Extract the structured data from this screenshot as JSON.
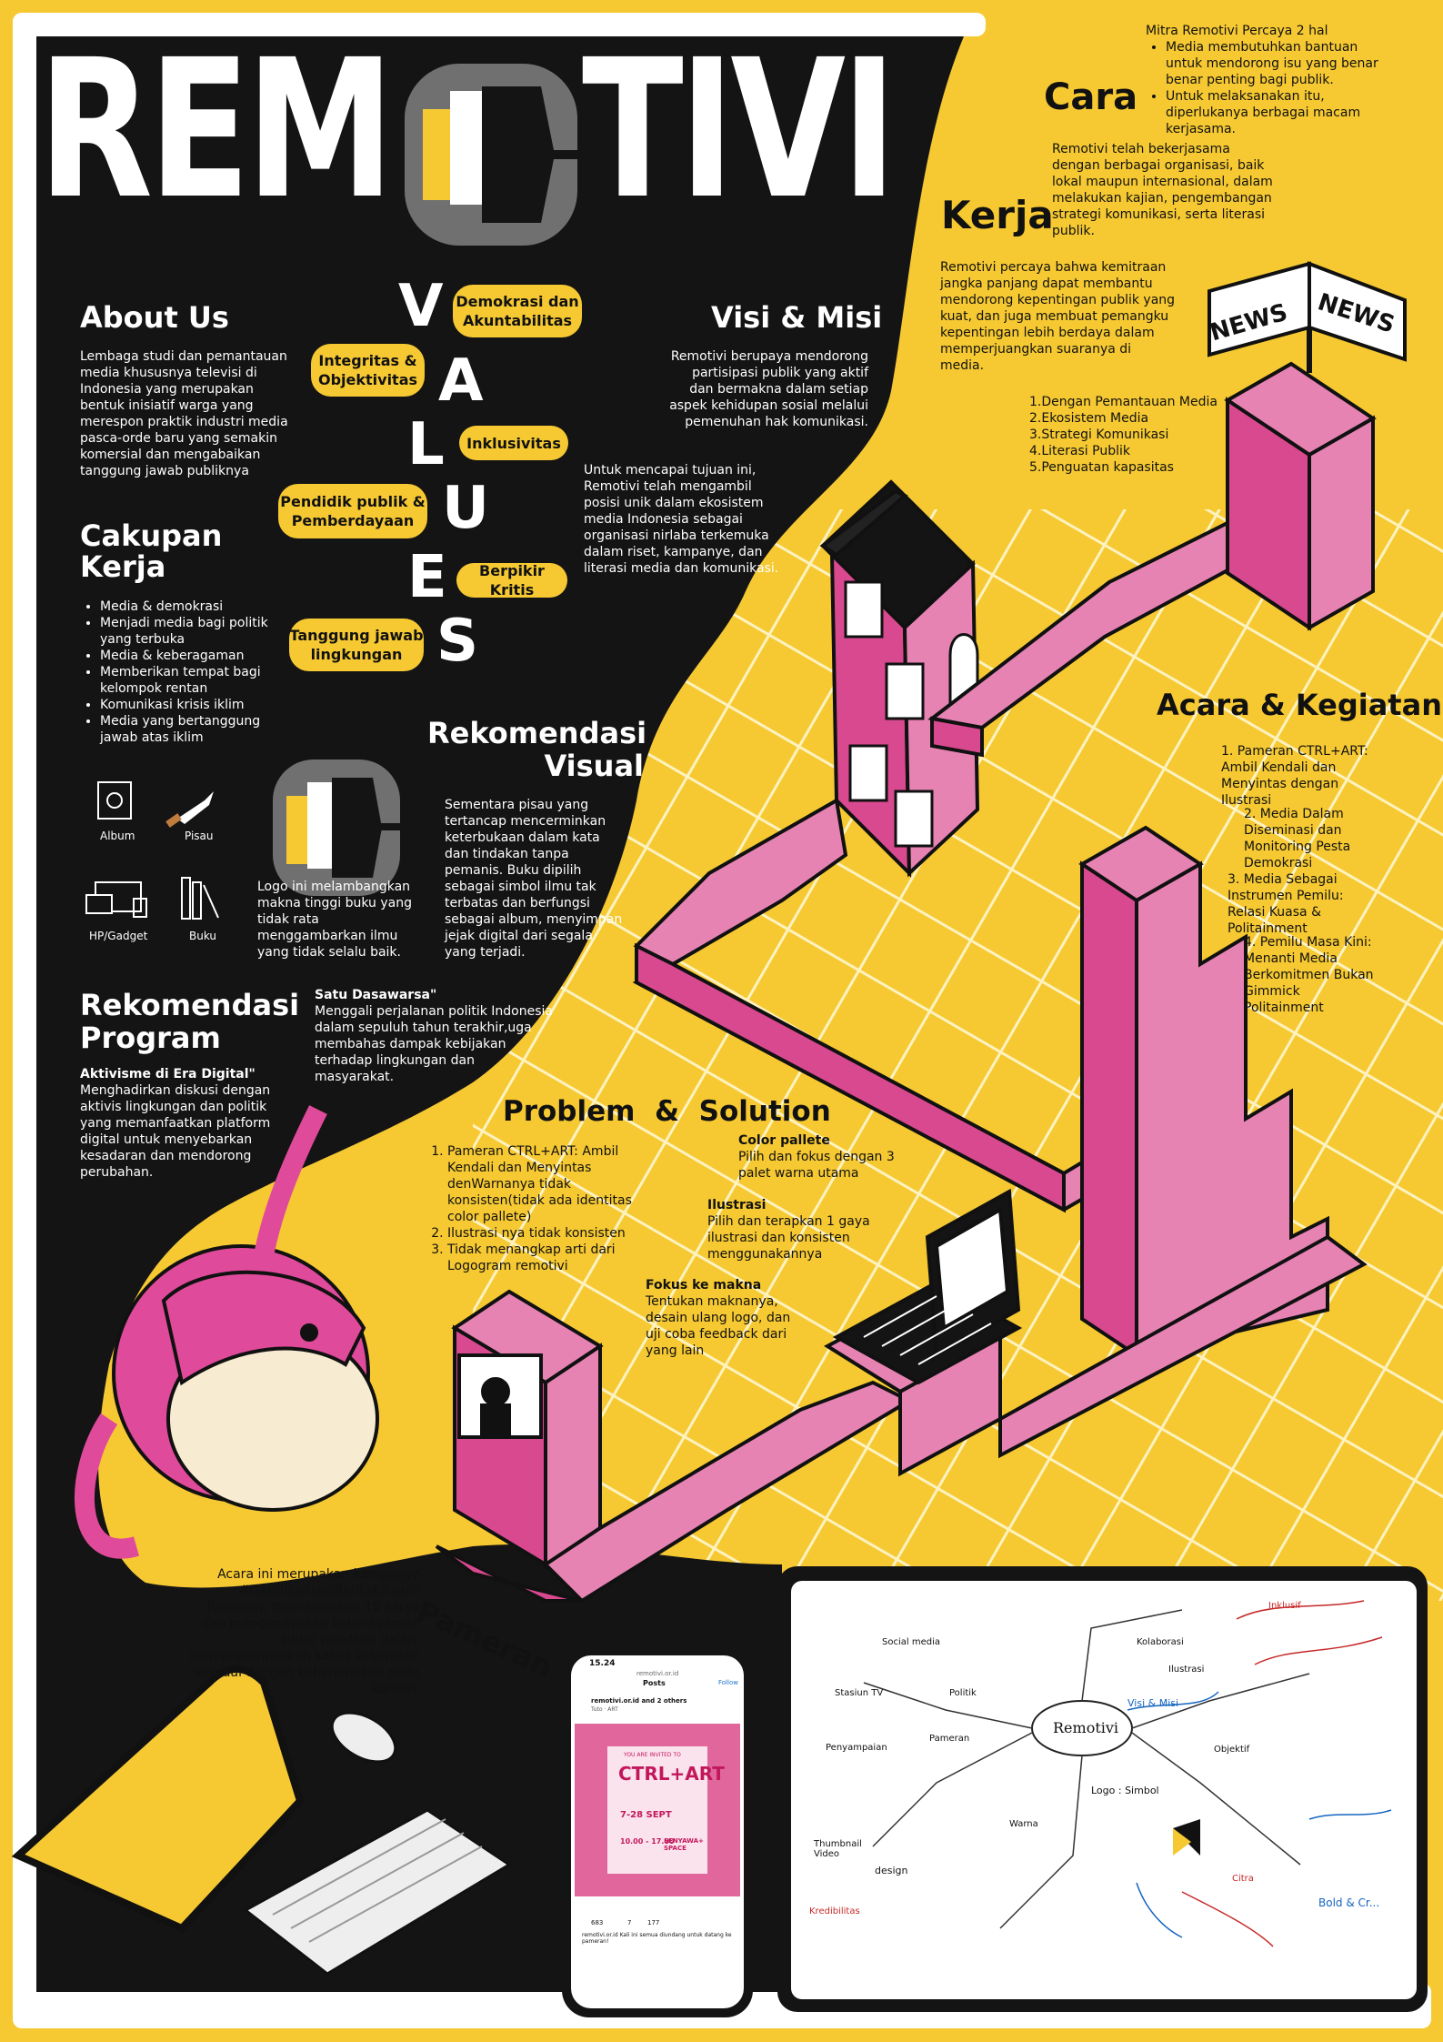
{
  "title": {
    "left": "REM",
    "right": "TIVI"
  },
  "cara_kerja": {
    "word1": "Cara",
    "word2": "Kerja",
    "mitra_title": "Mitra Remotivi Percaya 2 hal",
    "mitra_points": [
      "Media membutuhkan bantuan untuk mendorong isu yang benar benar penting bagi publik.",
      "Untuk melaksanakan itu, diperlukanya berbagai macam kerjasama."
    ],
    "para1": "Remotivi telah bekerjasama dengan berbagai organisasi, baik lokal maupun internasional, dalam melakukan kajian, pengembangan strategi komunikasi, serta literasi publik.",
    "para2": "Remotivi percaya bahwa kemitraan jangka panjang dapat membantu mendorong kepentingan publik yang kuat, dan juga membuat pemangku kepentingan lebih berdaya dalam memperjuangkan suaranya di media.",
    "list": [
      "1.Dengan Pemantauan Media",
      "2.Ekosistem Media",
      "3.Strategi Komunikasi",
      "4.Literasi Publik",
      "5.Penguatan kapasitas"
    ]
  },
  "news_sign": {
    "left": "NEWS",
    "right": "NEWS"
  },
  "about": {
    "heading": "About Us",
    "text": "Lembaga studi dan pemantauan media khususnya televisi di Indonesia yang merupakan bentuk inisiatif warga yang merespon praktik industri media pasca-orde baru yang semakin komersial dan mengabaikan tanggung jawab publiknya"
  },
  "values": {
    "letters": [
      "V",
      "A",
      "L",
      "U",
      "E",
      "S"
    ],
    "items": [
      "Demokrasi dan Akuntabilitas",
      "Integritas & Objektivitas",
      "Inklusivitas",
      "Pendidik publik & Pemberdayaan",
      "Berpikir Kritis",
      "Tanggung jawab lingkungan"
    ]
  },
  "visi_misi": {
    "heading": "Visi & Misi",
    "visi": "Remotivi berupaya mendorong partisipasi publik yang aktif dan bermakna dalam setiap aspek kehidupan sosial melalui pemenuhan hak komunikasi.",
    "misi": "Untuk mencapai tujuan ini, Remotivi telah mengambil posisi unik dalam ekosistem media Indonesia sebagai organisasi nirlaba terkemuka dalam riset, kampanye, dan literasi media dan komunikasi."
  },
  "cakupan": {
    "heading_line1": "Cakupan",
    "heading_line2": "Kerja",
    "items": [
      "Media & demokrasi",
      "Menjadi media bagi politik yang terbuka",
      "Media & keberagaman",
      "Memberikan tempat bagi kelompok rentan",
      "Komunikasi krisis iklim",
      "Media yang bertanggung jawab atas iklim"
    ]
  },
  "rekomendasi_visual": {
    "heading_line1": "Rekomendasi",
    "heading_line2": "Visual",
    "icons": [
      "Album",
      "Pisau",
      "HP/Gadget",
      "Buku"
    ],
    "logo_text": "Logo ini melambangkan makna tinggi buku yang tidak rata menggambarkan ilmu yang tidak selalu baik.",
    "text": "Sementara pisau yang tertancap mencerminkan keterbukaan dalam kata dan tindakan tanpa pemanis. Buku dipilih sebagai simbol ilmu tak terbatas dan berfungsi sebagai album, menyimpan jejak digital dari segala yang terjadi."
  },
  "acara": {
    "heading": "Acara & Kegiatan",
    "items": [
      "1. Pameran CTRL+ART: Ambil Kendali dan Menyintas dengan Ilustrasi",
      "2. Media Dalam Diseminasi dan Monitoring Pesta Demokrasi",
      "3. Media Sebagai Instrumen Pemilu: Relasi Kuasa & Politainment",
      "4. Pemilu Masa Kini: Menanti Media Berkomitmen Bukan Gimmick Politainment"
    ]
  },
  "rekomendasi_program": {
    "heading_line1": "Rekomendasi",
    "heading_line2": "Program",
    "p1_title": "Aktivisme di Era Digital\"",
    "p1_text": "Menghadirkan diskusi dengan aktivis lingkungan dan politik yang memanfaatkan platform digital untuk menyebarkan kesadaran dan mendorong perubahan.",
    "p2_title": "Satu Dasawarsa\"",
    "p2_text": "Menggali perjalanan politik Indonesia dalam sepuluh tahun terakhir,uga membahas dampak kebijakan terhadap lingkungan dan masyarakat."
  },
  "problem": {
    "heading": "Problem  &  Solution",
    "problems": [
      "Pameran CTRL+ART: Ambil Kendali dan Menyintas denWarnanya tidak konsisten(tidak ada identitas color pallete)",
      "Ilustrasi nya tidak konsisten",
      "Tidak menangkap arti dari Logogram remotivi"
    ],
    "s1_title": "Color pallete",
    "s1_text": "Pilih dan fokus dengan  3 palet warna utama",
    "s2_title": "Ilustrasi",
    "s2_text": "Pilih dan terapkan 1 gaya ilustrasi dan konsisten menggunakannya",
    "s3_title": "Fokus ke makna",
    "s3_text": "Tentukan maknanya, desain ulang logo, dan uji coba feedback dari yang lain"
  },
  "pameran": {
    "label": "Pameran",
    "text": "Acara ini merupakan kampanye #GantiIlustrasiBeritaKS oleh Remotivi, memamerkan 15 karya dan mengupayakan keberagaman sudut pandang dalam merepresentasikan kasus kekerasan seksual dengan keberpihakan pada korban."
  },
  "phone": {
    "time": "15.24",
    "header_small": "remotivi.or.id",
    "header": "Posts",
    "account": "remotivi.or.id and 2 others",
    "account_sub": "Tuto · ART",
    "follow": "Follow",
    "invited": "YOU ARE INVITED TO",
    "logo": "CTRL+ART",
    "dates": "7-28 SEPT",
    "time_range": "10.00 - 17.00",
    "venue": "SENYAWA+ SPACE",
    "likes": "683",
    "comments": "7",
    "shares": "177",
    "caption": "remotivi.or.id Kali ini semua diundang untuk datang ke pameran!"
  },
  "mindmap": {
    "center": "Remotivi",
    "nodes": [
      "Visi & Misi",
      "Logo : Simbol",
      "Social media",
      "Kolaborasi",
      "Ilustrasi",
      "Penyampaian",
      "Pameran",
      "Inklusif",
      "Politik",
      "Warna",
      "Citra",
      "design",
      "Thumbnail Video",
      "Kredibilitas",
      "Stasiun TV",
      "Objektif",
      "Bold & Cr..."
    ]
  },
  "colors": {
    "yellow": "#f6c932",
    "black": "#141414",
    "pink": "#d9498f",
    "light_pink": "#e683b3"
  }
}
